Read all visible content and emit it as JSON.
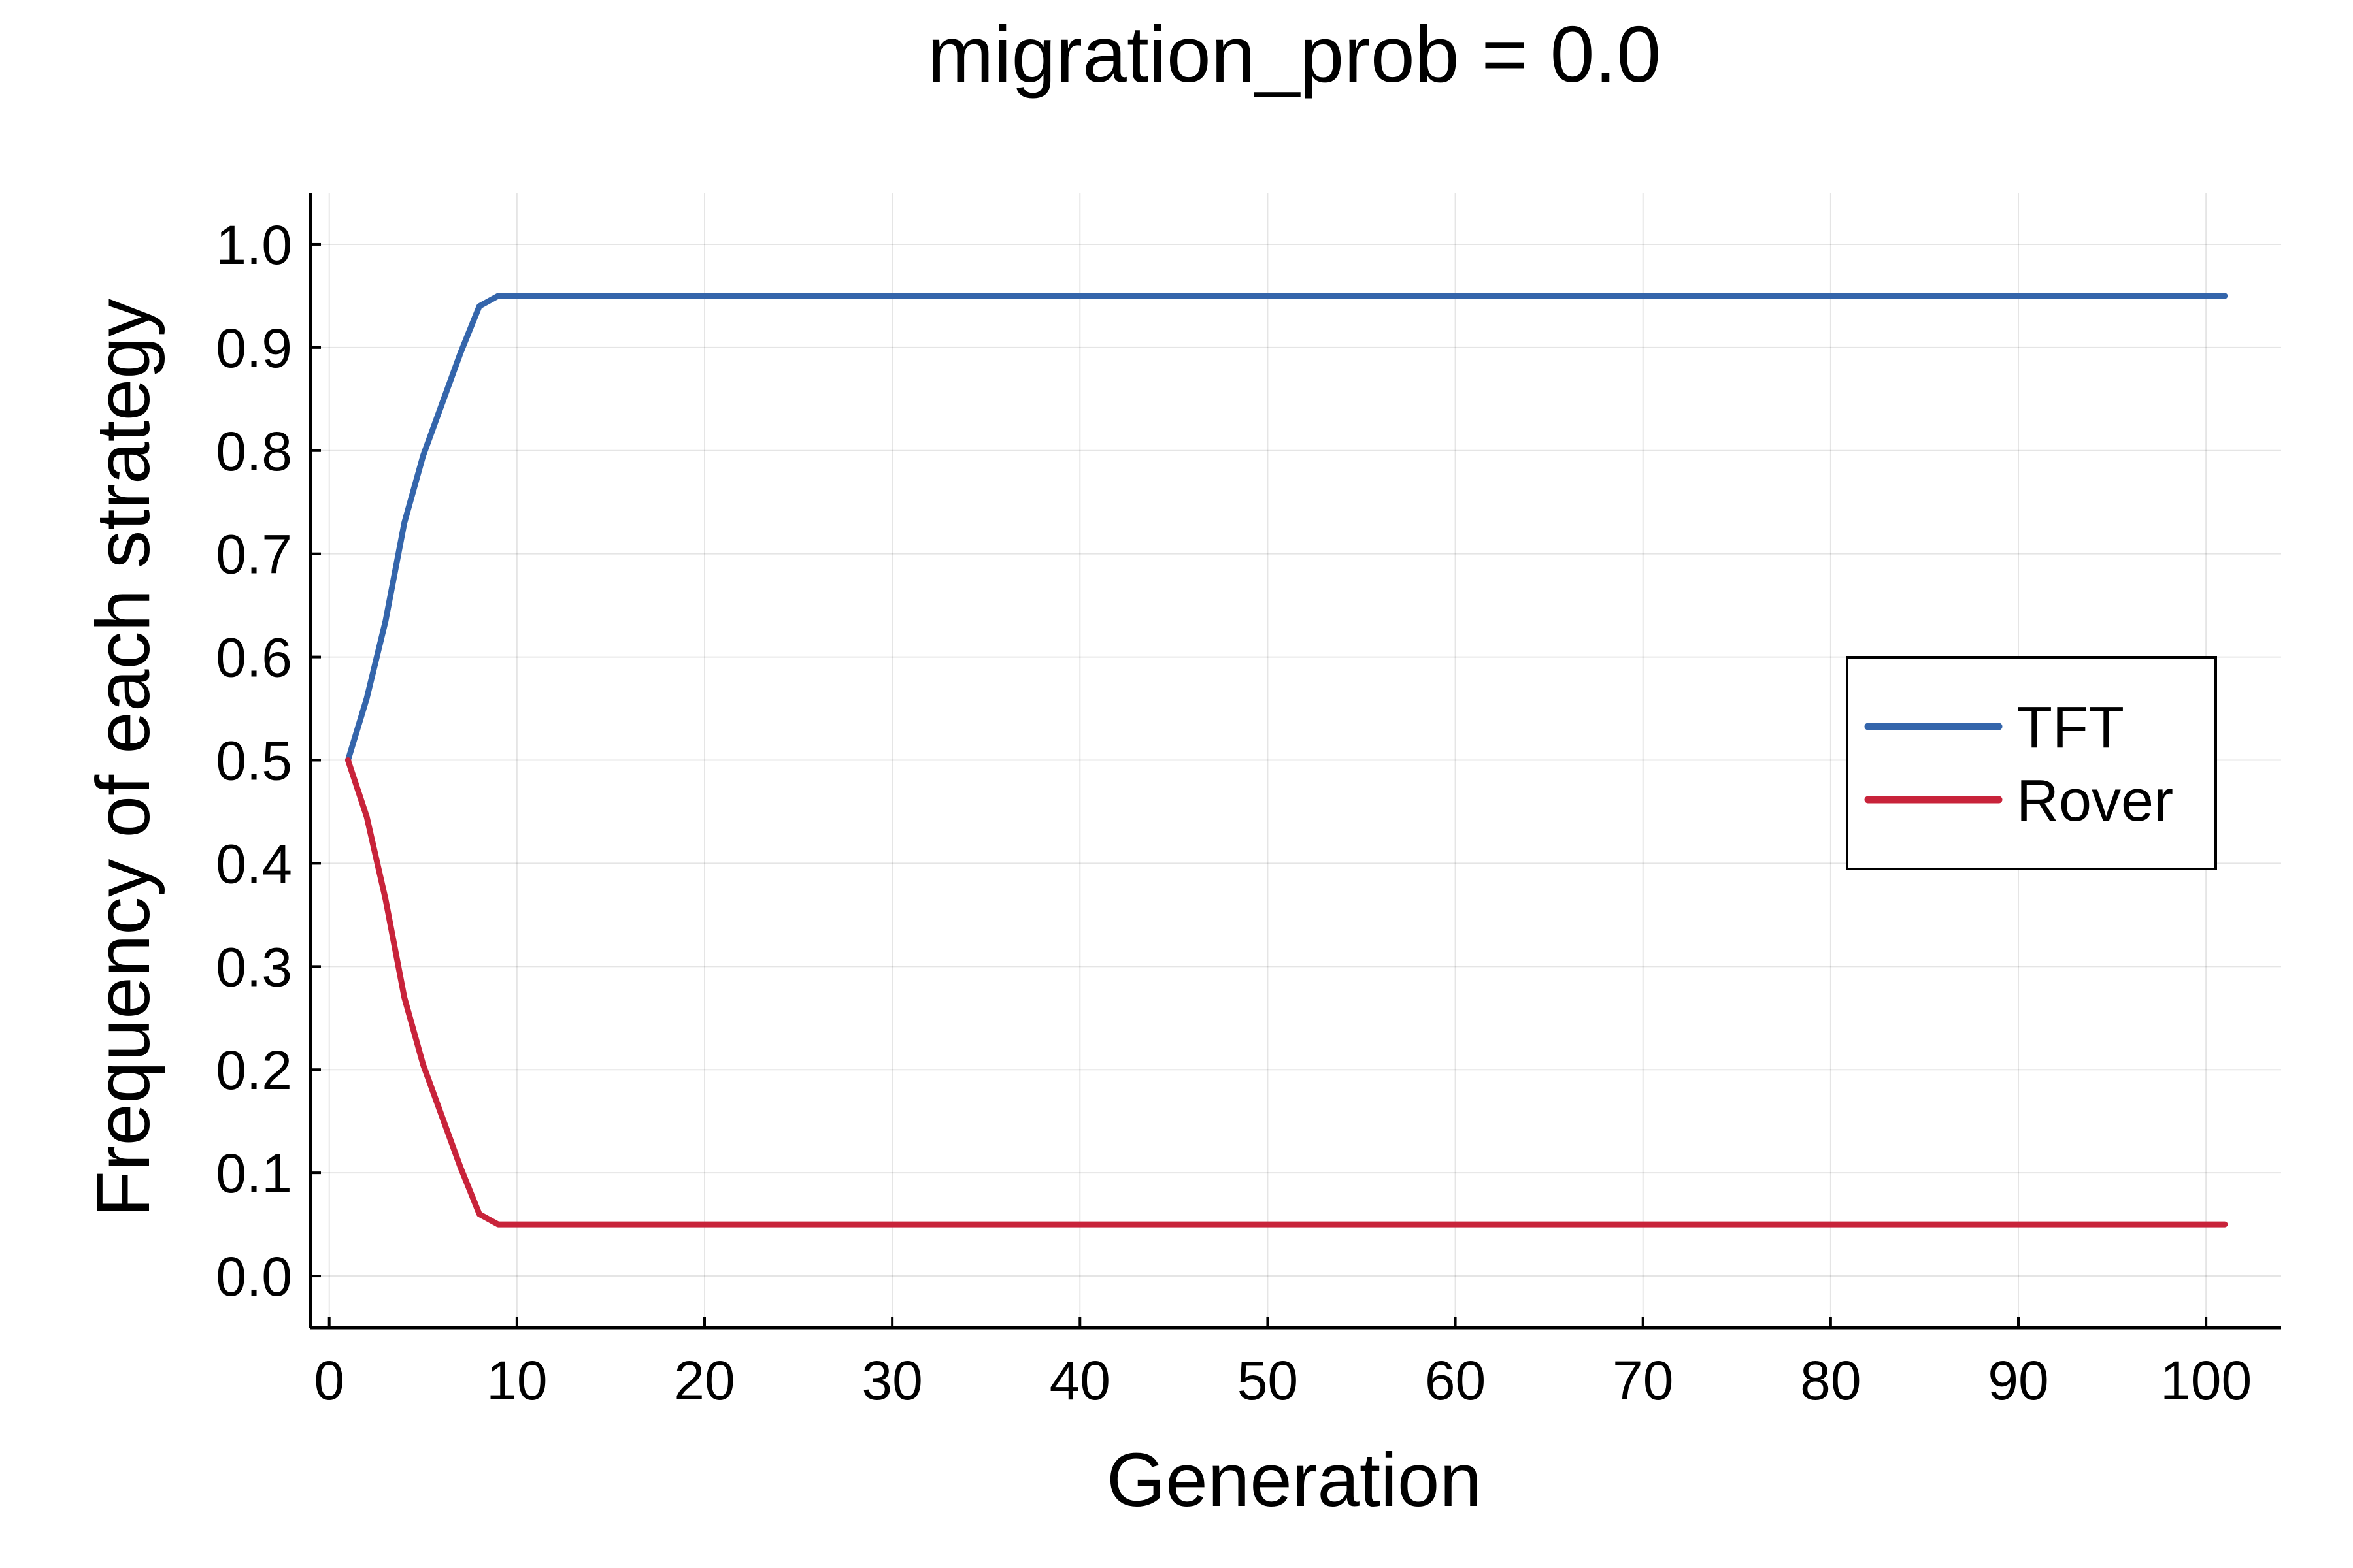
{
  "chart_data": {
    "type": "line",
    "title": "migration_prob = 0.0",
    "xlabel": "Generation",
    "ylabel": "Frequency of each strategy",
    "xlim": [
      -1,
      104
    ],
    "ylim": [
      -0.05,
      1.05
    ],
    "x_ticks": [
      0,
      10,
      20,
      30,
      40,
      50,
      60,
      70,
      80,
      90,
      100
    ],
    "x_tick_labels": [
      "0",
      "10",
      "20",
      "30",
      "40",
      "50",
      "60",
      "70",
      "80",
      "90",
      "100"
    ],
    "y_ticks": [
      0.0,
      0.1,
      0.2,
      0.3,
      0.4,
      0.5,
      0.6,
      0.7,
      0.8,
      0.9,
      1.0
    ],
    "y_tick_labels": [
      "0.0",
      "0.1",
      "0.2",
      "0.3",
      "0.4",
      "0.5",
      "0.6",
      "0.7",
      "0.8",
      "0.9",
      "1.0"
    ],
    "grid": true,
    "legend_position": "right",
    "series": [
      {
        "name": "TFT",
        "color": "#3465ab",
        "x": [
          1,
          2,
          3,
          4,
          5,
          6,
          7,
          8,
          9,
          10,
          20,
          30,
          40,
          50,
          60,
          70,
          80,
          90,
          101
        ],
        "y": [
          0.5,
          0.56,
          0.635,
          0.73,
          0.795,
          0.845,
          0.895,
          0.94,
          0.95,
          0.95,
          0.95,
          0.95,
          0.95,
          0.95,
          0.95,
          0.95,
          0.95,
          0.95,
          0.95
        ]
      },
      {
        "name": "Rover",
        "color": "#c8233a",
        "x": [
          1,
          2,
          3,
          4,
          5,
          6,
          7,
          8,
          9,
          10,
          20,
          30,
          40,
          50,
          60,
          70,
          80,
          90,
          101
        ],
        "y": [
          0.5,
          0.445,
          0.365,
          0.27,
          0.205,
          0.155,
          0.105,
          0.06,
          0.05,
          0.05,
          0.05,
          0.05,
          0.05,
          0.05,
          0.05,
          0.05,
          0.05,
          0.05,
          0.05
        ]
      }
    ]
  }
}
